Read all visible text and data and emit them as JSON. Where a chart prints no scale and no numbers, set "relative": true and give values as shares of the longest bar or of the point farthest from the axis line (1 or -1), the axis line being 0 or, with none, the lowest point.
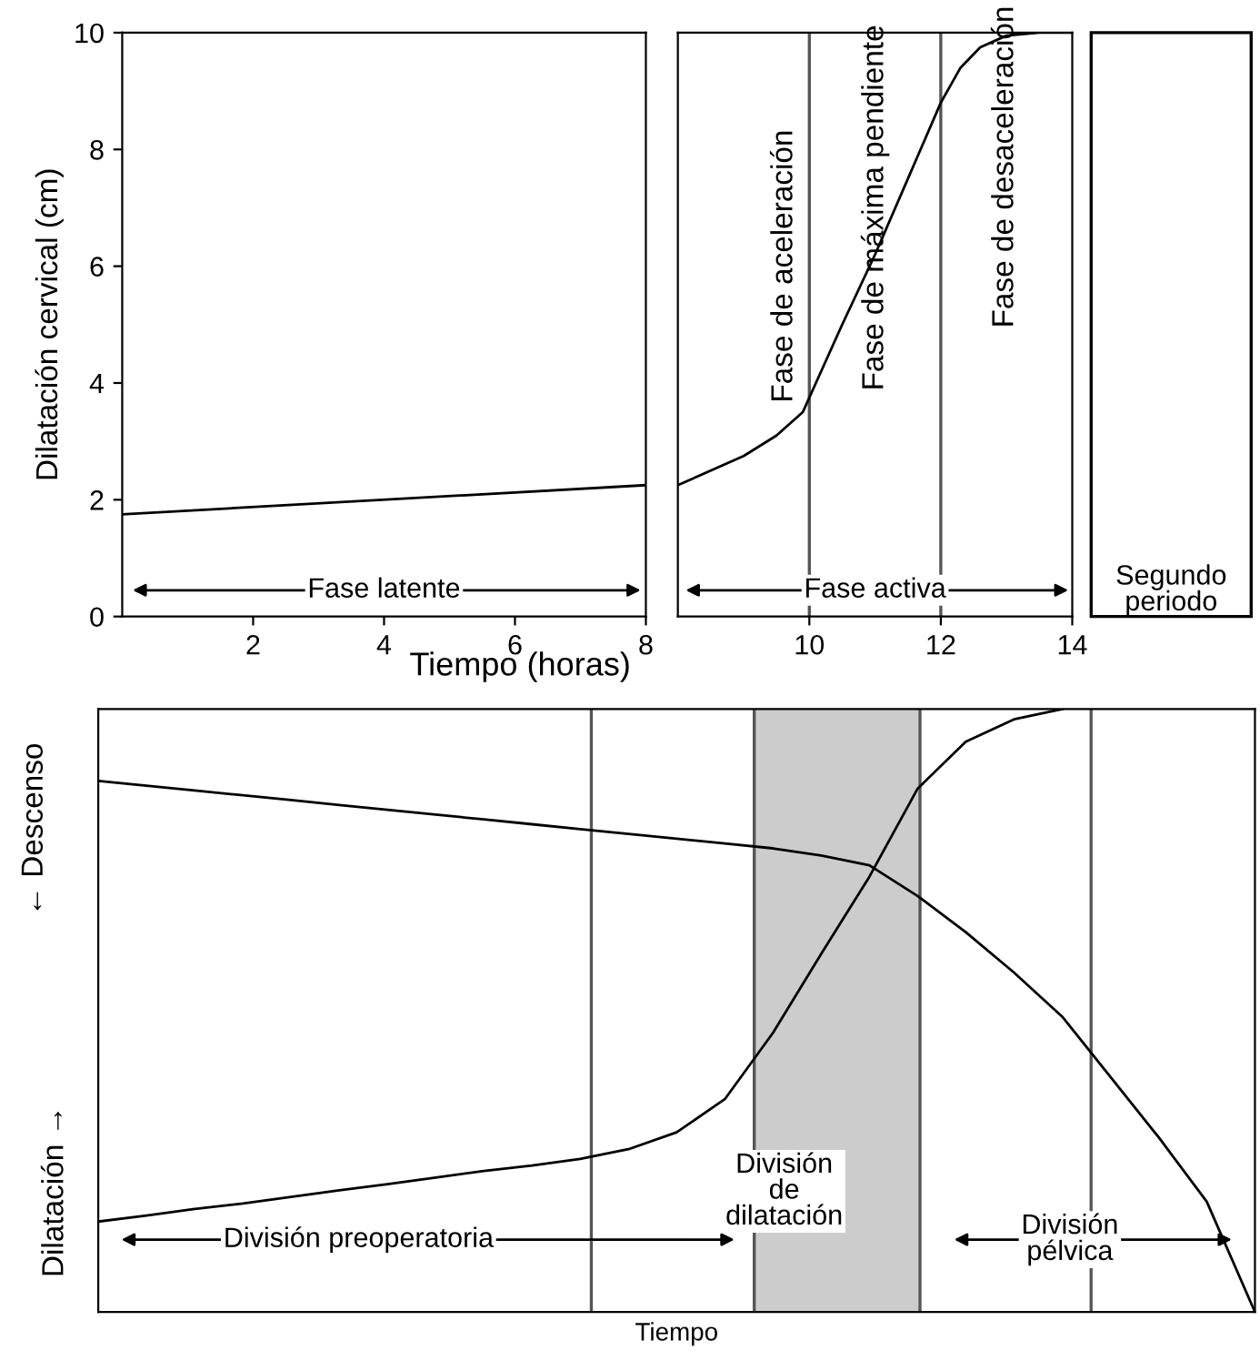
{
  "chart_data": [
    {
      "type": "line",
      "ylabel": "Dilatación cervical (cm)",
      "xlim": [
        0,
        8
      ],
      "xticks": [
        2,
        4,
        6,
        8
      ],
      "ylim": [
        0,
        10
      ],
      "yticks": [
        0,
        2,
        4,
        6,
        8,
        10
      ],
      "grid": false,
      "legend": false,
      "series": [
        {
          "color": "#000000",
          "x": [
            0,
            8
          ],
          "values": [
            1.75,
            2.25
          ]
        }
      ],
      "annotations": [
        "Fase latente"
      ]
    },
    {
      "type": "line",
      "xlabel": "Tiempo (horas)",
      "xlim": [
        8,
        14
      ],
      "xticks": [
        10,
        12,
        14
      ],
      "ylim": [
        0,
        10
      ],
      "yticks": [
        0,
        2,
        4,
        6,
        8,
        10
      ],
      "tick_labels": "x",
      "grid": false,
      "legend": false,
      "series": [
        {
          "color": "#000000",
          "x": [
            8,
            8.5,
            9,
            9.5,
            9.9,
            10,
            10.5,
            11,
            11.5,
            12,
            12.3,
            12.6,
            13,
            13.5,
            14
          ],
          "values": [
            2.25,
            2.5,
            2.75,
            3.1,
            3.5,
            3.75,
            5,
            6.2,
            7.5,
            8.8,
            9.4,
            9.75,
            9.95,
            10,
            10
          ]
        }
      ],
      "ref_lines": [
        {
          "axis": "x",
          "value": 10,
          "color": "#555555"
        },
        {
          "axis": "x",
          "value": 12,
          "color": "#555555"
        }
      ],
      "annotations": [
        "Fase de aceleración",
        "Fase de máxima pendiente",
        "Fase de desaceleración",
        "Fase activa"
      ]
    },
    {
      "type": "other",
      "annotations": [
        "Segundo\nperiodo"
      ]
    },
    {
      "type": "line",
      "relative": true,
      "xlabel": "Tiempo",
      "ylabel": "Dilatación →",
      "grid": false,
      "legend": false,
      "categories": [
        null,
        null,
        null,
        null,
        null,
        null,
        null,
        null,
        null,
        null,
        null,
        null,
        null,
        null,
        null,
        null,
        null,
        null,
        null,
        null,
        null,
        null,
        null,
        null,
        null
      ],
      "series": [
        {
          "color": "#000000",
          "values": [
            0.15,
            0.16,
            0.171,
            0.18,
            0.191,
            0.202,
            0.212,
            0.223,
            0.234,
            0.243,
            0.254,
            0.27,
            0.298,
            0.353,
            0.463,
            0.594,
            0.722,
            0.868,
            0.946,
            0.983,
            1,
            null,
            null,
            null,
            null
          ]
        },
        {
          "color": "#000000",
          "values": [
            0.881,
            0.873,
            0.865,
            0.857,
            0.849,
            0.841,
            0.833,
            0.825,
            0.817,
            0.809,
            0.801,
            0.793,
            0.785,
            0.777,
            0.769,
            0.757,
            0.741,
            0.69,
            0.63,
            0.563,
            0.49,
            0.39,
            0.29,
            0.183,
            0
          ]
        }
      ],
      "annotations": [
        "← Descenso",
        "División preoperatoria",
        "División\nde\ndilatación",
        "División\npélvica"
      ]
    }
  ]
}
